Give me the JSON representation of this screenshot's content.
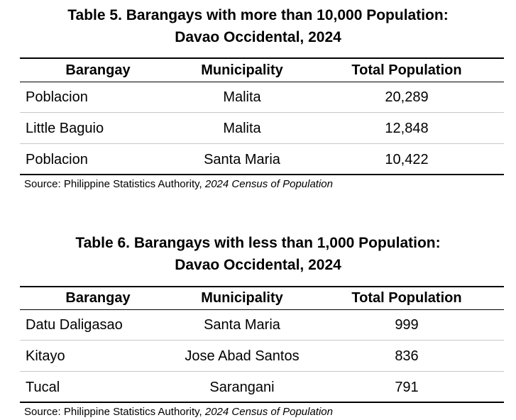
{
  "tables": [
    {
      "title_line1": "Table 5. Barangays with more than 10,000 Population:",
      "title_line2": "Davao Occidental, 2024",
      "headers": [
        "Barangay",
        "Municipality",
        "Total Population"
      ],
      "rows": [
        [
          "Poblacion",
          "Malita",
          "20,289"
        ],
        [
          "Little Baguio",
          "Malita",
          "12,848"
        ],
        [
          "Poblacion",
          "Santa Maria",
          "10,422"
        ]
      ],
      "source_prefix": "Source: Philippine Statistics Authority, ",
      "source_title": "2024 Census of Population"
    },
    {
      "title_line1": "Table 6. Barangays with less than 1,000 Population:",
      "title_line2": "Davao Occidental, 2024",
      "headers": [
        "Barangay",
        "Municipality",
        "Total Population"
      ],
      "rows": [
        [
          "Datu Daligasao",
          "Santa Maria",
          "999"
        ],
        [
          "Kitayo",
          "Jose Abad Santos",
          "836"
        ],
        [
          "Tucal",
          "Sarangani",
          "791"
        ]
      ],
      "source_prefix": "Source: Philippine Statistics Authority, ",
      "source_title": "2024 Census of Population"
    }
  ]
}
